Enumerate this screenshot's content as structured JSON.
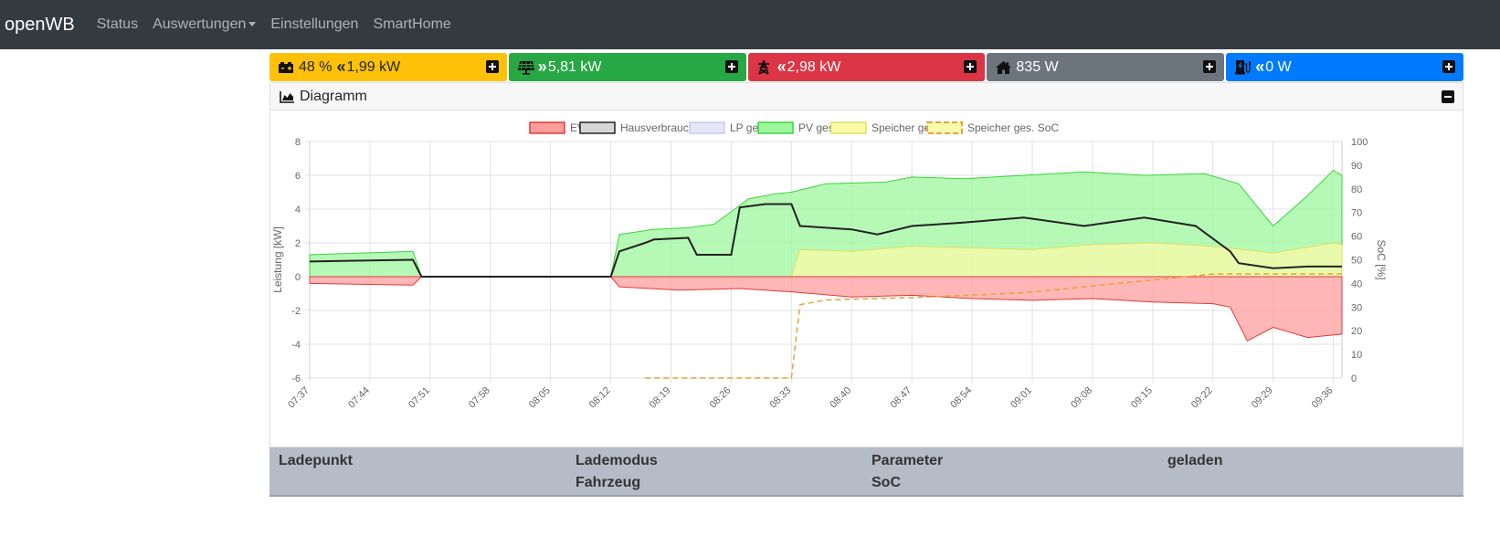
{
  "nav": {
    "brand": "openWB",
    "items": [
      "Status",
      "Auswertungen",
      "Einstellungen",
      "SmartHome"
    ]
  },
  "tiles": [
    {
      "color": "#ffc107",
      "text_color": "#212529",
      "icon": "car-battery-icon",
      "arrow": "«",
      "pre": "48 %",
      "value": "1,99 kW"
    },
    {
      "color": "#28a745",
      "text_color": "#ffffff",
      "icon": "solar-panel-icon",
      "arrow": "»",
      "pre": "",
      "value": "5,81 kW"
    },
    {
      "color": "#dc3545",
      "text_color": "#ffffff",
      "icon": "power-grid-icon",
      "arrow": "«",
      "pre": "",
      "value": "2,98 kW"
    },
    {
      "color": "#6c757d",
      "text_color": "#ffffff",
      "icon": "house-icon",
      "arrow": "",
      "pre": "",
      "value": "835 W"
    },
    {
      "color": "#007bff",
      "text_color": "#ffffff",
      "icon": "charging-station-icon",
      "arrow": "«",
      "pre": "",
      "value": "0 W"
    }
  ],
  "card": {
    "title": "Diagramm"
  },
  "chart_data": {
    "type": "area",
    "legend": [
      {
        "label": "EVU",
        "fill": "#ff9d9d",
        "stroke": "#e23a3a",
        "dashed": false
      },
      {
        "label": "Hausverbrauch",
        "fill": "#d6d6d6",
        "stroke": "#222222",
        "dashed": false
      },
      {
        "label": "LP ges.",
        "fill": "#e6e6fa",
        "stroke": "#c9c9f0",
        "dashed": false
      },
      {
        "label": "PV ges.",
        "fill": "#9ef79e",
        "stroke": "#3ed33e",
        "dashed": false
      },
      {
        "label": "Speicher ges.",
        "fill": "#fafaaa",
        "stroke": "#e0e060",
        "dashed": false
      },
      {
        "label": "Speicher ges. SoC",
        "fill": "#fafaaa",
        "stroke": "#e6a23c",
        "dashed": true
      }
    ],
    "legend_position": "top",
    "y_left": {
      "label": "Leistung [kW]",
      "min": -6,
      "max": 8,
      "ticks": [
        8,
        6,
        4,
        2,
        0,
        -2,
        -4,
        -6
      ]
    },
    "y_right": {
      "label": "SoC [%]",
      "min": 0,
      "max": 100,
      "ticks": [
        100,
        90,
        80,
        70,
        60,
        50,
        40,
        30,
        20,
        10,
        0
      ]
    },
    "x_ticks": [
      "07:37",
      "07:44",
      "07:51",
      "07:58",
      "08:05",
      "08:12",
      "08:19",
      "08:26",
      "08:33",
      "08:40",
      "08:47",
      "08:54",
      "09:01",
      "09:08",
      "09:15",
      "09:22",
      "09:29",
      "09:36"
    ],
    "x_start": "07:37",
    "x_end": "09:37",
    "grid": true,
    "series": [
      {
        "name": "PV ges.",
        "time": [
          "07:37",
          "07:49",
          "07:50",
          "08:11",
          "08:12",
          "08:13",
          "08:17",
          "08:21",
          "08:24",
          "08:28",
          "08:31",
          "08:33",
          "08:37",
          "08:44",
          "08:47",
          "08:53",
          "09:00",
          "09:07",
          "09:14",
          "09:21",
          "09:25",
          "09:29",
          "09:33",
          "09:36",
          "09:37"
        ],
        "values": [
          1.3,
          1.5,
          0,
          0,
          0,
          2.5,
          2.8,
          2.9,
          3.1,
          4.6,
          4.9,
          5.0,
          5.5,
          5.6,
          5.9,
          5.8,
          6.0,
          6.2,
          6.0,
          6.1,
          5.5,
          3.0,
          4.8,
          6.3,
          6.0
        ]
      },
      {
        "name": "Hausverbrauch",
        "time": [
          "07:37",
          "07:49",
          "07:50",
          "08:11",
          "08:12",
          "08:13",
          "08:16",
          "08:17",
          "08:21",
          "08:22",
          "08:26",
          "08:27",
          "08:30",
          "08:33",
          "08:34",
          "08:40",
          "08:43",
          "08:47",
          "08:53",
          "09:00",
          "09:07",
          "09:14",
          "09:20",
          "09:24",
          "09:25",
          "09:29",
          "09:33",
          "09:37"
        ],
        "values": [
          0.9,
          1.0,
          0,
          0,
          0,
          1.5,
          2.0,
          2.2,
          2.3,
          1.3,
          1.3,
          4.1,
          4.3,
          4.3,
          3.0,
          2.8,
          2.5,
          3.0,
          3.2,
          3.5,
          3.0,
          3.5,
          3.0,
          1.5,
          0.8,
          0.5,
          0.6,
          0.6
        ]
      },
      {
        "name": "Speicher ges.",
        "time": [
          "08:33",
          "08:34",
          "08:40",
          "08:47",
          "08:54",
          "09:01",
          "09:08",
          "09:15",
          "09:22",
          "09:29",
          "09:36",
          "09:37"
        ],
        "values": [
          0,
          1.6,
          1.5,
          1.8,
          1.7,
          1.6,
          1.9,
          2.0,
          1.8,
          1.4,
          2.0,
          1.9
        ]
      },
      {
        "name": "EVU",
        "time": [
          "07:37",
          "07:49",
          "07:50",
          "08:11",
          "08:12",
          "08:13",
          "08:20",
          "08:27",
          "08:33",
          "08:40",
          "08:47",
          "08:54",
          "09:01",
          "09:08",
          "09:15",
          "09:22",
          "09:24",
          "09:26",
          "09:29",
          "09:33",
          "09:37"
        ],
        "values": [
          -0.4,
          -0.5,
          0,
          0,
          0,
          -0.6,
          -0.8,
          -0.7,
          -0.9,
          -1.2,
          -1.1,
          -1.3,
          -1.4,
          -1.3,
          -1.5,
          -1.6,
          -1.8,
          -3.8,
          -3.0,
          -3.6,
          -3.4
        ]
      },
      {
        "name": "Speicher ges. SoC",
        "time": [
          "08:16",
          "08:33",
          "08:34",
          "08:37",
          "08:47",
          "09:00",
          "09:22",
          "09:37"
        ],
        "values": [
          0,
          0,
          31,
          33,
          34,
          36,
          44,
          44
        ]
      }
    ]
  },
  "table": {
    "headers": [
      "Ladepunkt",
      "Lademodus",
      "Parameter",
      "geladen"
    ],
    "subheaders": [
      "",
      "Fahrzeug",
      "SoC",
      ""
    ]
  }
}
